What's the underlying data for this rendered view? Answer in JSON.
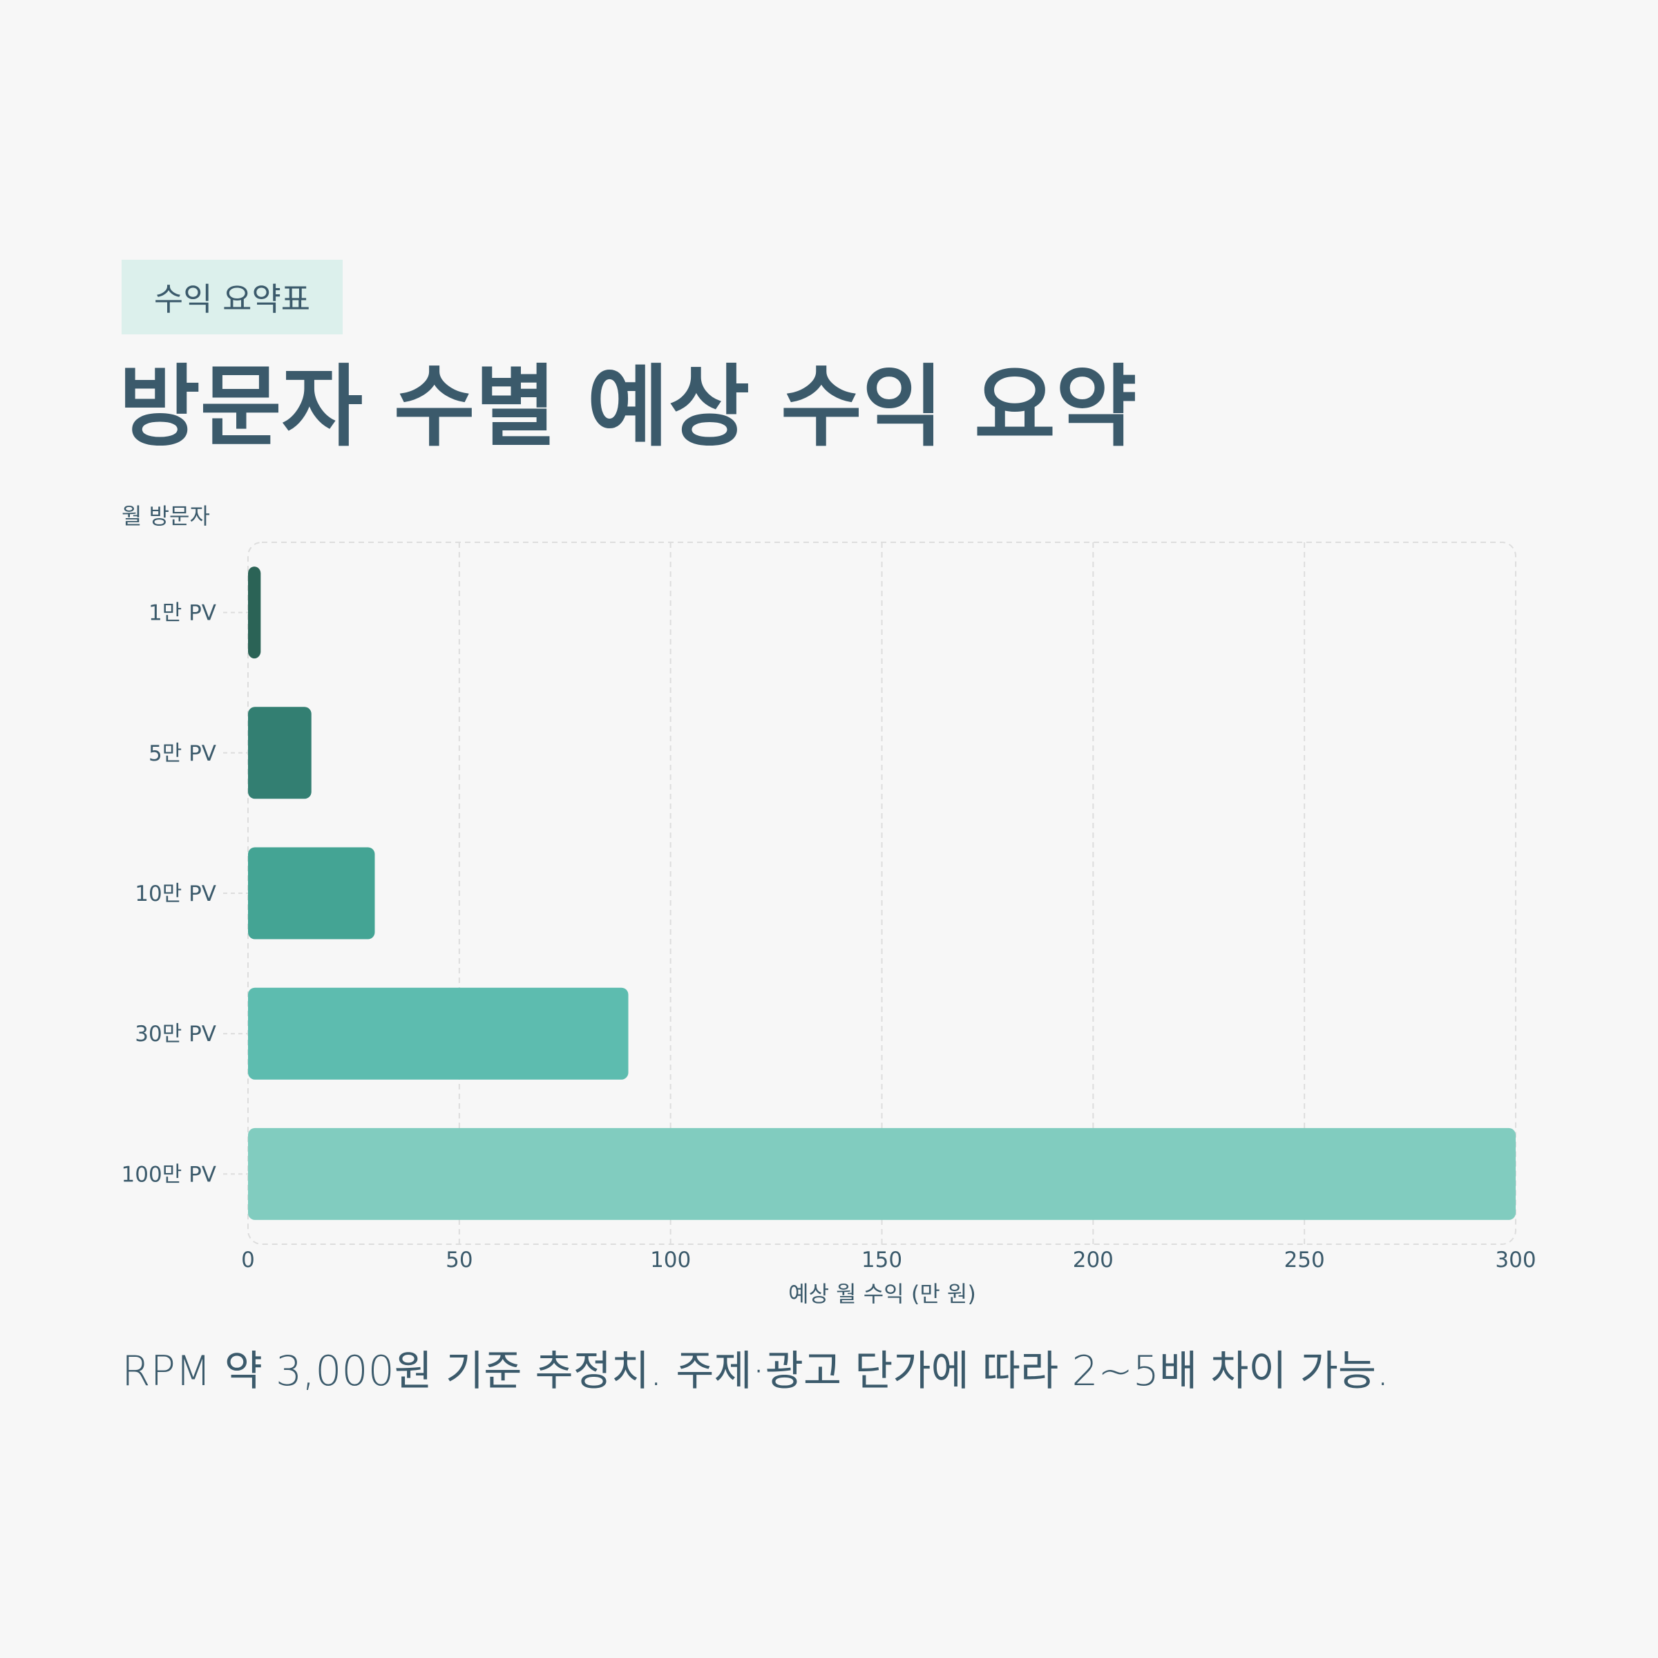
{
  "badge": "수익 요약표",
  "title": "방문자 수별 예상 수익 요약",
  "note": "RPM 약 3,000원 기준 추정치. 주제·광고 단가에 따라 2~5배 차이 가능.",
  "chart_data": {
    "type": "bar",
    "orientation": "horizontal",
    "categories": [
      "1만 PV",
      "5만 PV",
      "10만 PV",
      "30만 PV",
      "100만 PV"
    ],
    "values": [
      3,
      15,
      30,
      90,
      300
    ],
    "colors": [
      "#2b6356",
      "#337f72",
      "#44a494",
      "#5dbcaf",
      "#81ccbf"
    ],
    "xlabel": "예상 월 수익 (만 원)",
    "ylabel": "월 방문자",
    "xlim": [
      0,
      300
    ],
    "xticks": [
      0,
      50,
      100,
      150,
      200,
      250,
      300
    ],
    "grid": true
  }
}
